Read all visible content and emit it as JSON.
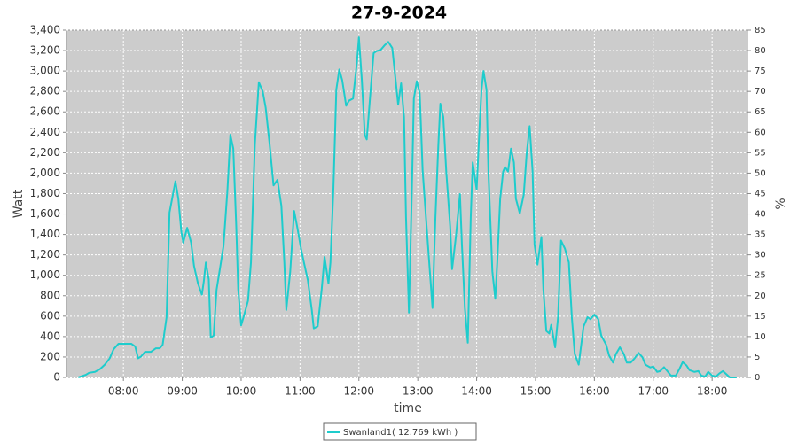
{
  "chart_data": {
    "type": "line",
    "title": "27-9-2024",
    "x_label": "time",
    "y_label": "Watt",
    "y2_label": "%",
    "x": [
      "07:14",
      "07:22",
      "07:25",
      "07:31",
      "07:36",
      "07:41",
      "07:46",
      "07:50",
      "07:55",
      "08:01",
      "08:08",
      "08:12",
      "08:15",
      "08:18",
      "08:22",
      "08:28",
      "08:33",
      "08:37",
      "08:40",
      "08:44",
      "08:47",
      "08:50",
      "08:53",
      "08:56",
      "08:59",
      "09:01",
      "09:05",
      "09:09",
      "09:12",
      "09:16",
      "09:20",
      "09:22",
      "09:24",
      "09:27",
      "09:29",
      "09:32",
      "09:35",
      "09:38",
      "09:42",
      "09:46",
      "09:49",
      "09:52",
      "09:55",
      "09:57",
      "10:00",
      "10:03",
      "10:07",
      "10:10",
      "10:14",
      "10:18",
      "10:22",
      "10:25",
      "10:29",
      "10:33",
      "10:37",
      "10:41",
      "10:44",
      "10:46",
      "10:50",
      "10:54",
      "10:57",
      "11:01",
      "11:04",
      "11:08",
      "11:12",
      "11:14",
      "11:18",
      "11:22",
      "11:25",
      "11:29",
      "11:31",
      "11:34",
      "11:37",
      "11:40",
      "11:43",
      "11:47",
      "11:50",
      "11:54",
      "11:58",
      "12:00",
      "12:03",
      "12:06",
      "12:08",
      "12:12",
      "12:15",
      "12:18",
      "12:22",
      "12:26",
      "12:30",
      "12:34",
      "12:37",
      "12:40",
      "12:43",
      "12:46",
      "12:48",
      "12:51",
      "12:54",
      "12:56",
      "12:59",
      "13:02",
      "13:05",
      "13:09",
      "13:13",
      "13:15",
      "13:18",
      "13:21",
      "13:23",
      "13:26",
      "13:29",
      "13:33",
      "13:35",
      "13:39",
      "13:43",
      "13:45",
      "13:48",
      "13:51",
      "13:54",
      "13:56",
      "14:00",
      "14:03",
      "14:05",
      "14:07",
      "14:10",
      "14:12",
      "14:16",
      "14:19",
      "14:21",
      "14:24",
      "14:27",
      "14:29",
      "14:32",
      "14:35",
      "14:38",
      "14:40",
      "14:44",
      "14:48",
      "14:51",
      "14:54",
      "14:57",
      "14:59",
      "15:02",
      "15:06",
      "15:08",
      "15:11",
      "15:14",
      "15:16",
      "15:20",
      "15:23",
      "15:26",
      "15:30",
      "15:34",
      "15:37",
      "15:40",
      "15:44",
      "15:46",
      "15:49",
      "15:53",
      "15:56",
      "16:00",
      "16:04",
      "16:07",
      "16:12",
      "16:15",
      "16:19",
      "16:22",
      "16:26",
      "16:30",
      "16:33",
      "16:37",
      "16:41",
      "16:45",
      "16:49",
      "16:52",
      "16:57",
      "17:00",
      "17:04",
      "17:07",
      "17:11",
      "17:15",
      "17:18",
      "17:23",
      "17:27",
      "17:30",
      "17:34",
      "17:37",
      "17:42",
      "17:46",
      "17:49",
      "17:53",
      "17:56",
      "18:00",
      "18:04",
      "18:07",
      "18:11",
      "18:14",
      "18:18",
      "18:25"
    ],
    "series": [
      {
        "name": "Swanland1( 12.769 kWh )",
        "color": "#1ecccc",
        "values": [
          0,
          27,
          45,
          54,
          80,
          125,
          187,
          276,
          330,
          330,
          330,
          303,
          187,
          205,
          250,
          250,
          285,
          285,
          320,
          590,
          1615,
          1767,
          1920,
          1750,
          1430,
          1320,
          1465,
          1320,
          1090,
          920,
          810,
          945,
          1125,
          960,
          390,
          410,
          860,
          1040,
          1285,
          1830,
          2375,
          2240,
          1480,
          860,
          510,
          610,
          750,
          1125,
          2285,
          2890,
          2800,
          2640,
          2285,
          1880,
          1935,
          1680,
          1125,
          660,
          1035,
          1630,
          1480,
          1260,
          1125,
          950,
          660,
          480,
          500,
          855,
          1180,
          920,
          1125,
          1840,
          2820,
          3015,
          2910,
          2660,
          2710,
          2730,
          3085,
          3330,
          2910,
          2375,
          2330,
          2820,
          3175,
          3195,
          3205,
          3250,
          3285,
          3225,
          2950,
          2670,
          2880,
          2550,
          1570,
          635,
          1840,
          2730,
          2900,
          2780,
          2020,
          1480,
          950,
          680,
          1570,
          2285,
          2680,
          2550,
          2020,
          1480,
          1060,
          1390,
          1795,
          1300,
          680,
          340,
          1570,
          2105,
          1840,
          2460,
          2820,
          3000,
          2820,
          2020,
          1040,
          770,
          1125,
          1750,
          2015,
          2060,
          2015,
          2240,
          2105,
          1750,
          1605,
          1790,
          2195,
          2460,
          2020,
          1300,
          1105,
          1375,
          860,
          455,
          430,
          515,
          295,
          590,
          1340,
          1260,
          1125,
          590,
          230,
          125,
          275,
          500,
          590,
          570,
          615,
          570,
          410,
          320,
          215,
          145,
          230,
          295,
          230,
          145,
          145,
          187,
          240,
          197,
          125,
          98,
          107,
          54,
          62,
          100,
          54,
          18,
          18,
          89,
          150,
          116,
          71,
          54,
          62,
          18,
          9,
          54,
          18,
          9,
          36,
          62,
          36,
          0,
          0
        ]
      }
    ],
    "xlim": [
      "07:02",
      "18:36"
    ],
    "xticks": [
      "08:00",
      "09:00",
      "10:00",
      "11:00",
      "12:00",
      "13:00",
      "14:00",
      "15:00",
      "16:00",
      "17:00",
      "18:00"
    ],
    "ylim": [
      0,
      3400
    ],
    "yticks": [
      0,
      200,
      400,
      600,
      800,
      {
        "value": 1000,
        "label": "1,000"
      },
      {
        "value": 1200,
        "label": "1,200"
      },
      {
        "value": 1400,
        "label": "1,400"
      },
      {
        "value": 1600,
        "label": "1,600"
      },
      {
        "value": 1800,
        "label": "1,800"
      },
      {
        "value": 2000,
        "label": "2,000"
      },
      {
        "value": 2200,
        "label": "2,200"
      },
      {
        "value": 2400,
        "label": "2,400"
      },
      {
        "value": 2600,
        "label": "2,600"
      },
      {
        "value": 2800,
        "label": "2,800"
      },
      {
        "value": 3000,
        "label": "3,000"
      },
      {
        "value": 3200,
        "label": "3,200"
      },
      {
        "value": 3400,
        "label": "3,400"
      }
    ],
    "y2lim": [
      0,
      85
    ],
    "y2ticks": [
      0,
      5,
      10,
      15,
      20,
      25,
      30,
      35,
      40,
      45,
      50,
      55,
      60,
      65,
      70,
      75,
      80,
      85
    ],
    "grid": true,
    "legend": "bottom"
  }
}
